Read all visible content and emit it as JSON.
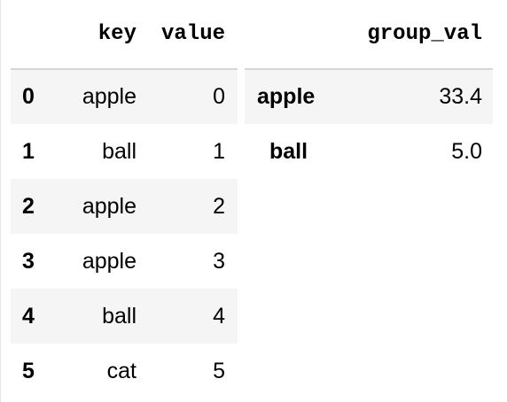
{
  "left_table": {
    "columns": [
      "key",
      "value"
    ],
    "rows": [
      {
        "index": "0",
        "key": "apple",
        "value": "0"
      },
      {
        "index": "1",
        "key": "ball",
        "value": "1"
      },
      {
        "index": "2",
        "key": "apple",
        "value": "2"
      },
      {
        "index": "3",
        "key": "apple",
        "value": "3"
      },
      {
        "index": "4",
        "key": "ball",
        "value": "4"
      },
      {
        "index": "5",
        "key": "cat",
        "value": "5"
      }
    ]
  },
  "right_table": {
    "columns": [
      "group_val"
    ],
    "rows": [
      {
        "index": "apple",
        "group_val": "33.4"
      },
      {
        "index": "ball",
        "group_val": "5.0"
      }
    ]
  },
  "colors": {
    "stripe": "#f5f5f5",
    "header_rule": "#d6d6d6",
    "text": "#000000"
  }
}
